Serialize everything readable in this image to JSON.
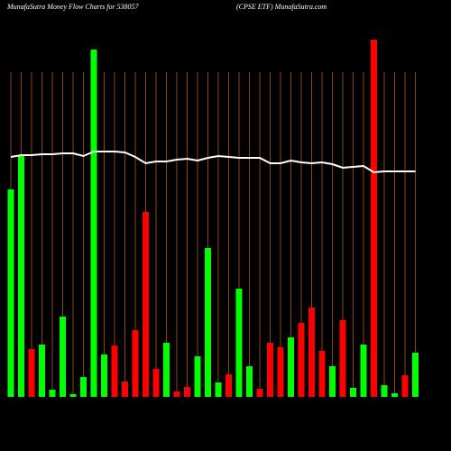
{
  "chart_data": {
    "type": "bar",
    "title": "MunafaSutra  Money Flow  Charts for 538057",
    "subtitle": "(CPSE ETF) MunafaSutra.com",
    "categories": [
      null,
      null,
      null,
      null,
      null,
      null,
      null,
      null,
      null,
      null,
      null,
      null,
      null,
      null,
      null,
      null,
      null,
      null,
      null,
      null,
      null,
      null,
      null,
      null,
      null,
      null,
      null,
      null,
      null,
      null,
      null,
      null,
      null,
      null,
      null,
      null,
      null,
      null,
      null,
      null
    ],
    "series": [
      {
        "values": [
          230,
          268,
          53,
          58,
          8,
          89,
          3,
          22,
          385,
          47,
          57,
          17,
          74,
          205,
          31,
          60,
          6,
          11,
          45,
          165,
          16,
          25,
          120,
          34,
          9,
          60,
          55,
          66,
          82,
          99,
          51,
          34,
          85,
          10,
          58,
          396,
          13,
          4,
          24,
          49
        ],
        "colors": [
          "#00ff00",
          "#00ff00",
          "#ff0000",
          "#00ff00",
          "#00ff00",
          "#00ff00",
          "#00ff00",
          "#00ff00",
          "#00ff00",
          "#00ff00",
          "#ff0000",
          "#ff0000",
          "#ff0000",
          "#ff0000",
          "#ff0000",
          "#00ff00",
          "#ff0000",
          "#ff0000",
          "#00ff00",
          "#00ff00",
          "#00ff00",
          "#ff0000",
          "#00ff00",
          "#00ff00",
          "#ff0000",
          "#ff0000",
          "#ff0000",
          "#00ff00",
          "#ff0000",
          "#ff0000",
          "#ff0000",
          "#00ff00",
          "#ff0000",
          "#00ff00",
          "#00ff00",
          "#ff0000",
          "#00ff00",
          "#00ff00",
          "#ff0000",
          "#00ff00"
        ]
      },
      {
        "color": "#ffffff",
        "values": [
          266,
          268,
          268,
          269,
          269,
          270,
          270,
          267,
          272,
          272,
          272,
          271,
          266,
          259,
          261,
          261,
          263,
          264,
          262,
          265,
          267,
          266,
          265,
          265,
          265,
          259,
          259,
          262,
          260,
          259,
          260,
          258,
          254,
          255,
          256,
          249,
          250,
          250,
          250,
          250
        ]
      }
    ],
    "ylim": [
      0,
      400
    ],
    "grid": true,
    "grid_color": "#8b4513"
  }
}
